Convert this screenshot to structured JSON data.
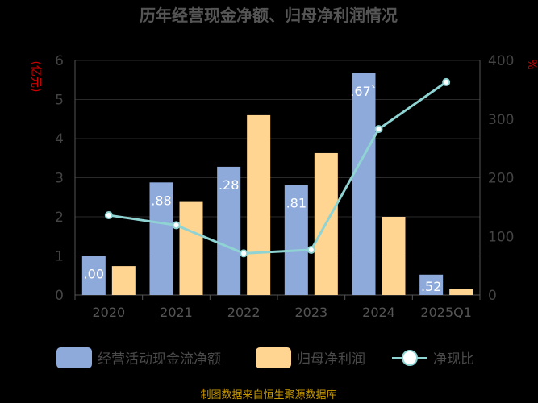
{
  "chart_data": {
    "type": "bar",
    "title": "历年经营现金净额、归母净利润情况",
    "left_unit": "(亿元)",
    "right_unit": "%",
    "categories": [
      "2020",
      "2021",
      "2022",
      "2023",
      "2024",
      "2025Q1"
    ],
    "ylim_left": [
      0,
      6
    ],
    "yticks_left": [
      "0",
      "1",
      "2",
      "3",
      "4",
      "5",
      "6"
    ],
    "ylim_right": [
      0,
      400
    ],
    "yticks_right": [
      "0",
      "100",
      "200",
      "300",
      "400"
    ],
    "series": [
      {
        "name": "经营活动现金流净额",
        "kind": "bar",
        "axis": "left",
        "color": "#8eaadb",
        "values": [
          1.0,
          2.88,
          3.28,
          2.81,
          5.67,
          0.52
        ]
      },
      {
        "name": "归母净利润",
        "kind": "bar",
        "axis": "left",
        "color": "#ffd591",
        "values": [
          0.74,
          2.4,
          4.6,
          3.63,
          2.0,
          0.15
        ]
      },
      {
        "name": "净现比",
        "kind": "line",
        "axis": "right",
        "color": "#8fd3d3",
        "values": [
          136,
          119,
          71,
          77,
          283,
          363
        ]
      }
    ],
    "data_labels": [
      ".00",
      ".88",
      ".28",
      ".81",
      ".67`",
      ".52"
    ]
  },
  "footer": "制图数据来自恒生聚源数据库"
}
